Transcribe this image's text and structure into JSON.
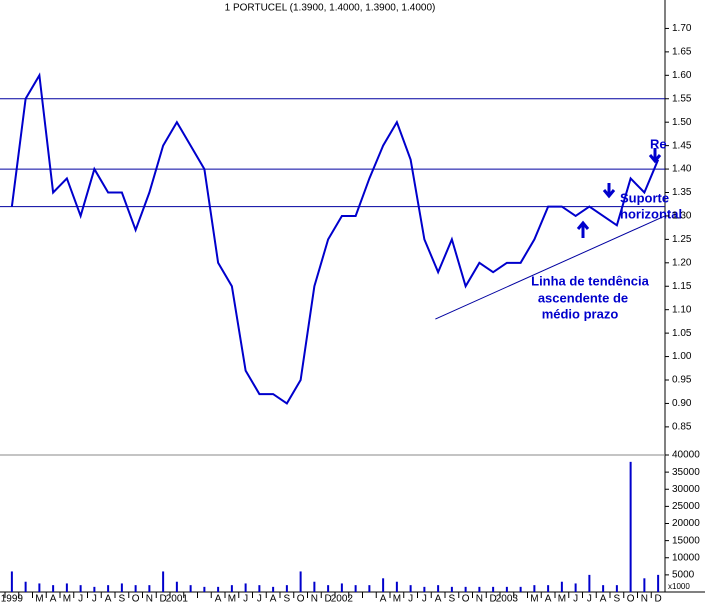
{
  "chart_data": [
    {
      "type": "line",
      "title": "1 PORTUCEL (1.3900, 1.4000, 1.3900, 1.4000)",
      "categories": [
        "1999",
        null,
        "M",
        "A",
        "M",
        "J",
        "J",
        "A",
        "S",
        "O",
        "N",
        "D",
        "2001",
        null,
        null,
        "A",
        "M",
        "J",
        "J",
        "A",
        "S",
        "O",
        "N",
        "D",
        "2002",
        null,
        null,
        "A",
        "M",
        "J",
        "J",
        "A",
        "S",
        "O",
        "N",
        "D",
        "2003",
        null,
        "M",
        "A",
        "M",
        "J",
        "J",
        "A",
        "S",
        "O",
        "N",
        "D"
      ],
      "series": [
        {
          "color": "#0000cc",
          "values": [
            1.32,
            1.55,
            1.6,
            1.35,
            1.38,
            1.3,
            1.4,
            1.35,
            1.35,
            1.27,
            1.35,
            1.45,
            1.5,
            1.45,
            1.4,
            1.2,
            1.15,
            0.97,
            0.92,
            0.92,
            0.9,
            0.95,
            1.15,
            1.25,
            1.3,
            1.3,
            1.38,
            1.45,
            1.5,
            1.42,
            1.25,
            1.18,
            1.25,
            1.15,
            1.2,
            1.18,
            1.2,
            1.2,
            1.25,
            1.32,
            1.32,
            1.3,
            1.32,
            1.3,
            1.28,
            1.38,
            1.35,
            1.42
          ]
        }
      ],
      "ylim": [
        0.79,
        1.75
      ],
      "yticks": [
        {
          "value": 1.7,
          "label": "1.70"
        },
        1.65,
        {
          "value": 1.6,
          "label": "1.60"
        },
        1.55,
        {
          "value": 1.5,
          "label": "1.50"
        },
        1.45,
        {
          "value": 1.4,
          "label": "1.40"
        },
        1.35,
        {
          "value": 1.3,
          "label": "1.30"
        },
        1.25,
        {
          "value": 1.2,
          "label": "1.20"
        },
        1.15,
        {
          "value": 1.1,
          "label": "1.10"
        },
        1.05,
        {
          "value": 1,
          "label": "1.00"
        },
        0.95,
        {
          "value": 0.9,
          "label": "0.90"
        },
        0.85
      ],
      "hlines": [
        1.55,
        1.4,
        1.32
      ],
      "hline_color": "#0000a0",
      "trend_line": {
        "x": [
          30.8,
          47.5
        ],
        "y": [
          1.08,
          1.3
        ]
      },
      "annotations": [
        "Linha de tendência",
        "ascendente de",
        "médio prazo",
        "Suporte",
        "horizontal",
        "Re"
      ]
    },
    {
      "type": "bar",
      "values": [
        6000,
        3000,
        2500,
        2000,
        2500,
        2000,
        1500,
        2000,
        2500,
        2000,
        2000,
        6000,
        3000,
        2000,
        1500,
        1500,
        2000,
        2500,
        2000,
        1500,
        2000,
        6000,
        3000,
        2000,
        2500,
        2000,
        2000,
        4000,
        3000,
        2000,
        1500,
        2000,
        1500,
        1500,
        1500,
        1500,
        1500,
        1500,
        2000,
        2000,
        3000,
        2500,
        5000,
        2000,
        2000,
        38000,
        4000,
        5000
      ],
      "color": "#0000cc",
      "ylim": [
        0,
        40000
      ],
      "yticks": [
        5000,
        10000,
        15000,
        20000,
        25000,
        30000,
        35000,
        40000
      ],
      "unit_label": "x1000"
    }
  ]
}
